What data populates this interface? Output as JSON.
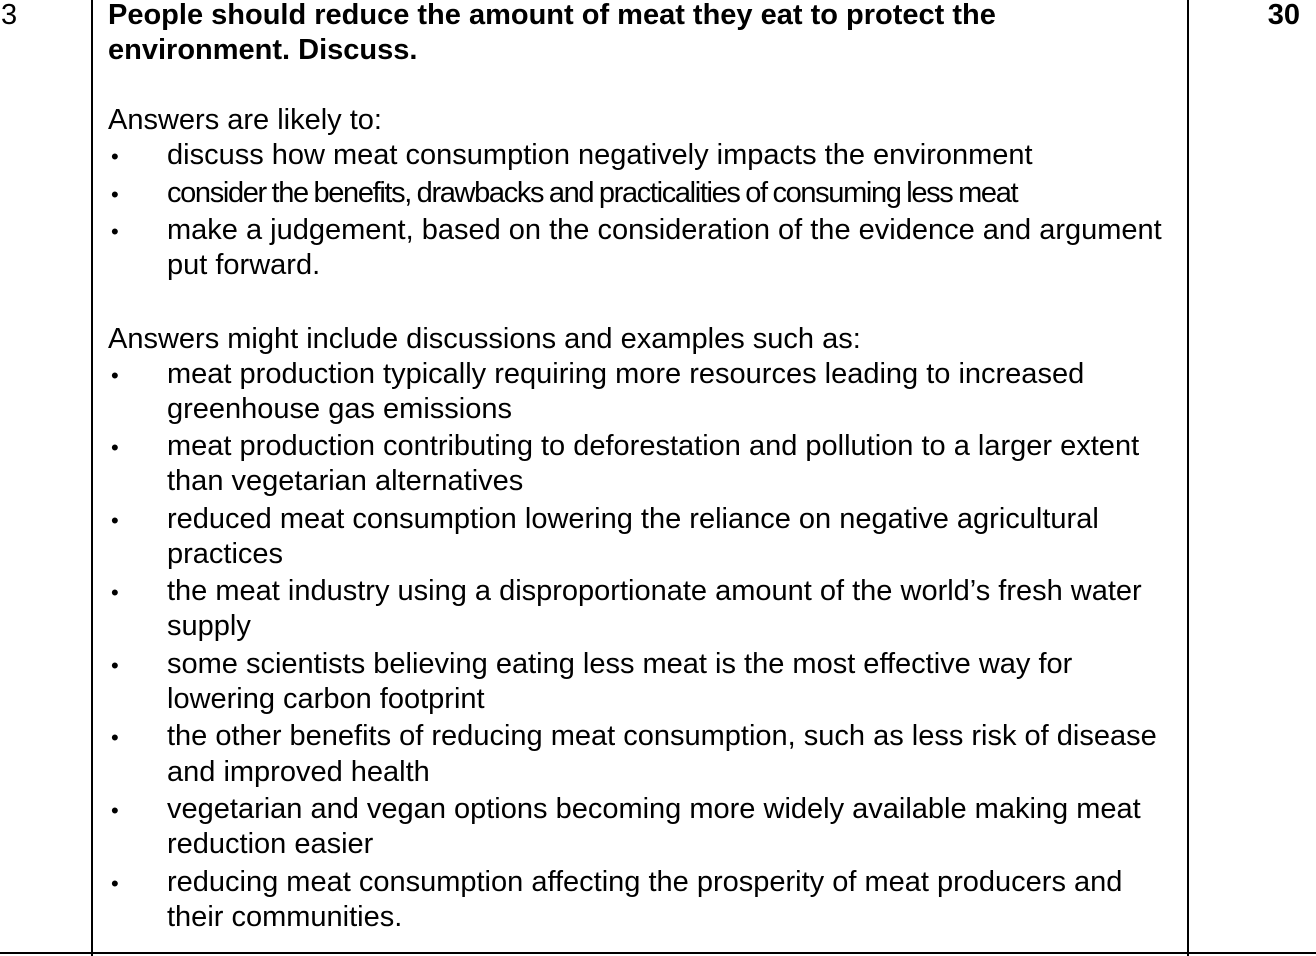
{
  "question": {
    "number": "3",
    "marks": "30",
    "prompt": "People should reduce the amount of meat they eat to protect the environment. Discuss.",
    "likely_intro": "Answers are likely to:",
    "likely_points": [
      "discuss how meat consumption negatively impacts the environment",
      "consider the benefits, drawbacks and practicalities of consuming less meat",
      "make a judgement, based on the consideration of the evidence and argument put forward."
    ],
    "examples_intro": "Answers might include discussions and examples such as:",
    "examples": [
      "meat production typically requiring more resources leading to increased greenhouse gas emissions",
      "meat production contributing to deforestation and pollution to a larger extent than vegetarian alternatives",
      "reduced meat consumption lowering the reliance on negative agricultural practices",
      "the meat industry using a disproportionate amount of the world’s fresh water supply",
      "some scientists believing eating less meat is the most effective way for lowering carbon footprint",
      "the other benefits of reducing meat consumption, such as less risk of disease and improved health",
      "vegetarian and vegan options becoming more widely available making meat reduction easier",
      "reducing meat consumption affecting the prosperity of meat producers and their communities."
    ],
    "bullet_glyph": "•"
  }
}
